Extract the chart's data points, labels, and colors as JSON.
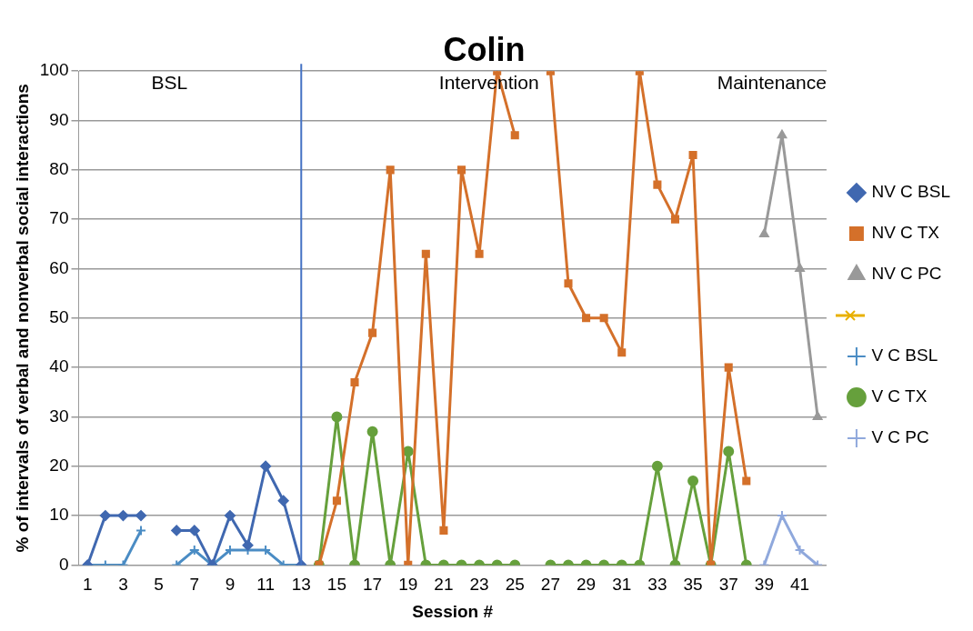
{
  "chart_data": {
    "type": "line",
    "title": "Colin",
    "xlabel": "Session #",
    "ylabel": "% of intervals of verbal and nonverbal social interactions",
    "x": [
      1,
      2,
      3,
      4,
      5,
      6,
      7,
      8,
      9,
      10,
      11,
      12,
      13,
      14,
      15,
      16,
      17,
      18,
      19,
      20,
      21,
      22,
      23,
      24,
      25,
      26,
      27,
      28,
      29,
      30,
      31,
      32,
      33,
      34,
      35,
      36,
      37,
      38,
      39,
      40,
      41,
      42
    ],
    "xlim": [
      0.5,
      42.5
    ],
    "xticks": [
      1,
      3,
      5,
      7,
      9,
      11,
      13,
      15,
      17,
      19,
      21,
      23,
      25,
      27,
      29,
      31,
      33,
      35,
      37,
      39,
      41
    ],
    "ylim": [
      0,
      100
    ],
    "yticks": [
      0,
      10,
      20,
      30,
      40,
      50,
      60,
      70,
      80,
      90,
      100
    ],
    "grid": "y",
    "legend": "right",
    "series": [
      {
        "name": "NV C BSL",
        "color": "#4068b0",
        "marker": "diamond",
        "values": [
          0,
          10,
          10,
          10,
          null,
          7,
          7,
          0,
          10,
          4,
          20,
          13,
          0,
          null,
          null,
          null,
          null,
          null,
          null,
          null,
          null,
          null,
          null,
          null,
          null,
          null,
          null,
          null,
          null,
          null,
          null,
          null,
          null,
          null,
          null,
          null,
          null,
          null,
          null,
          null,
          null,
          null
        ]
      },
      {
        "name": "NV C TX",
        "color": "#d4702a",
        "marker": "square",
        "values": [
          null,
          null,
          null,
          null,
          null,
          null,
          null,
          null,
          null,
          null,
          null,
          null,
          null,
          0,
          13,
          37,
          47,
          80,
          0,
          63,
          7,
          80,
          63,
          100,
          87,
          null,
          100,
          57,
          50,
          50,
          43,
          100,
          77,
          70,
          83,
          0,
          40,
          17,
          null,
          null,
          null,
          null
        ]
      },
      {
        "name": "NV C PC",
        "color": "#999999",
        "marker": "triangle",
        "values": [
          null,
          null,
          null,
          null,
          null,
          null,
          null,
          null,
          null,
          null,
          null,
          null,
          null,
          null,
          null,
          null,
          null,
          null,
          null,
          null,
          null,
          null,
          null,
          null,
          null,
          null,
          null,
          null,
          null,
          null,
          null,
          null,
          null,
          null,
          null,
          null,
          null,
          null,
          67,
          87,
          60,
          30
        ]
      },
      {
        "color": "#e8b000",
        "marker": "cross",
        "values": [
          null,
          null,
          null,
          null,
          null,
          null,
          null,
          null,
          null,
          null,
          null,
          null,
          null,
          null,
          null,
          null,
          null,
          null,
          null,
          null,
          null,
          null,
          null,
          null,
          null,
          null,
          null,
          null,
          null,
          null,
          null,
          null,
          null,
          null,
          null,
          null,
          null,
          null,
          null,
          null,
          null,
          null
        ]
      },
      {
        "name": "V C BSL",
        "color": "#4a8cc4",
        "marker": "cross",
        "values": [
          0,
          0,
          0,
          7,
          null,
          0,
          3,
          0,
          3,
          3,
          3,
          0,
          0,
          null,
          null,
          null,
          null,
          null,
          null,
          null,
          null,
          null,
          null,
          null,
          null,
          null,
          null,
          null,
          null,
          null,
          null,
          null,
          null,
          null,
          null,
          null,
          null,
          null,
          null,
          null,
          null,
          null
        ]
      },
      {
        "name": "V C TX",
        "color": "#66a03c",
        "marker": "circle",
        "values": [
          null,
          null,
          null,
          null,
          null,
          null,
          null,
          null,
          null,
          null,
          null,
          null,
          null,
          0,
          30,
          0,
          27,
          0,
          23,
          0,
          0,
          0,
          0,
          0,
          0,
          null,
          0,
          0,
          0,
          0,
          0,
          0,
          20,
          0,
          17,
          0,
          23,
          0,
          null,
          null,
          null,
          null
        ]
      },
      {
        "name": "V C PC",
        "color": "#8fa8dc",
        "marker": "cross",
        "values": [
          null,
          null,
          null,
          null,
          null,
          null,
          null,
          null,
          null,
          null,
          null,
          null,
          null,
          null,
          null,
          null,
          null,
          null,
          null,
          null,
          null,
          null,
          null,
          null,
          null,
          null,
          null,
          null,
          null,
          null,
          null,
          null,
          null,
          null,
          null,
          null,
          null,
          null,
          0,
          10,
          3,
          0
        ]
      }
    ],
    "ref_lines": [
      {
        "axis": "x",
        "value": 13,
        "color": "#4472c4"
      }
    ],
    "annotations": [
      "BSL",
      "Intervention",
      "Maintenance"
    ]
  }
}
